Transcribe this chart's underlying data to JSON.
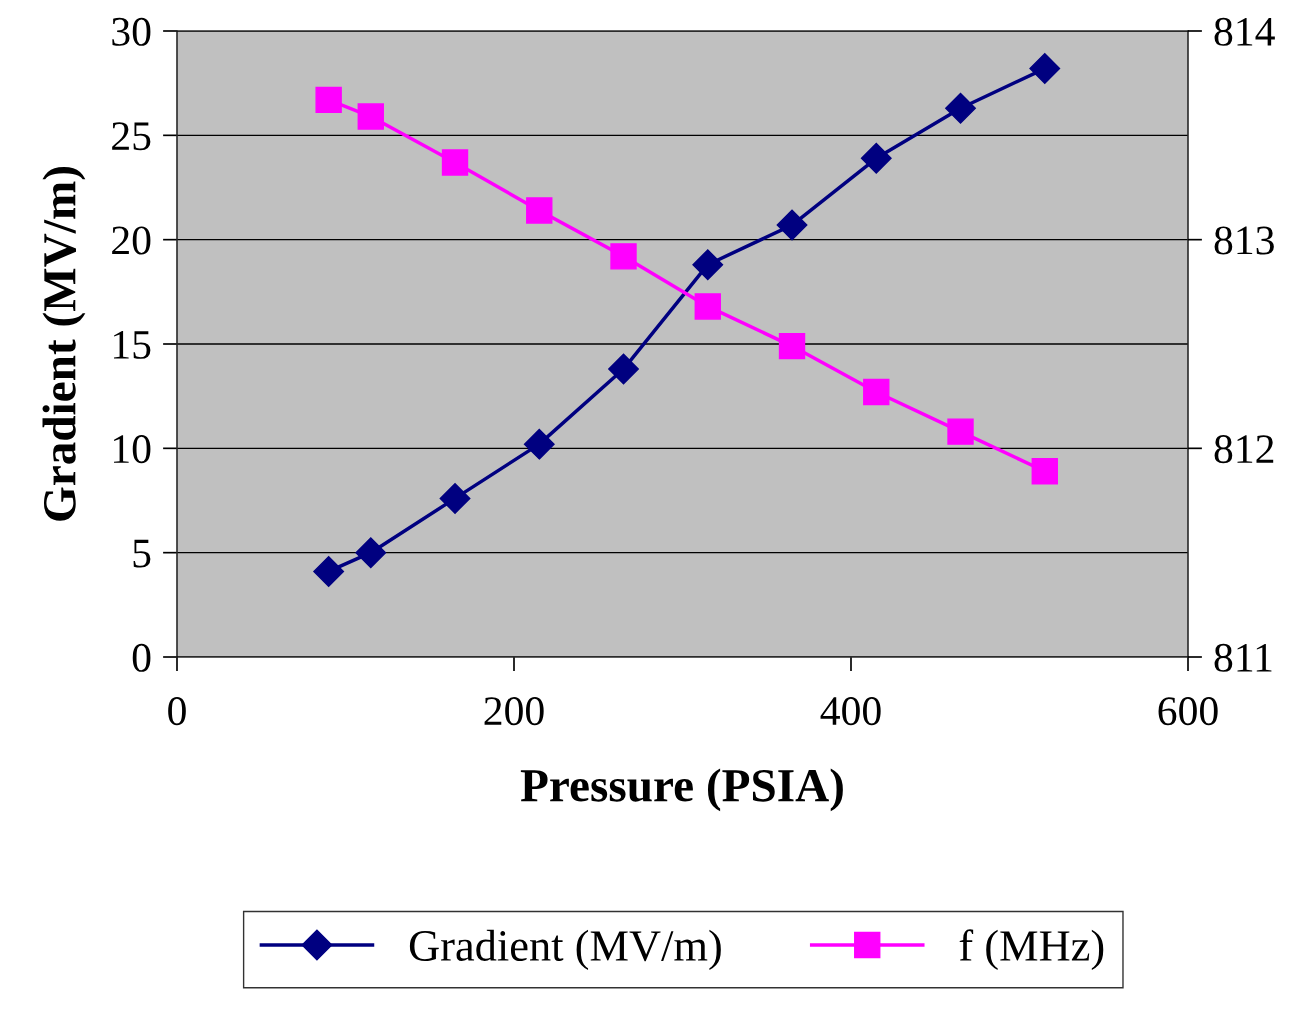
{
  "chart_data": {
    "type": "line",
    "xlabel": "Pressure (PSIA)",
    "ylabel": "Gradient (MV/m)",
    "x": [
      90,
      115,
      165,
      215,
      265,
      315,
      365,
      415,
      465,
      515
    ],
    "series": [
      {
        "name": "Gradient (MV/m)",
        "color": "#000080",
        "marker": "diamond",
        "values": [
          4.1,
          5.0,
          7.6,
          10.2,
          13.8,
          18.8,
          20.7,
          23.9,
          26.3,
          28.2
        ]
      },
      {
        "name": "f (MHz)",
        "color": "#ff00ff",
        "marker": "square",
        "axis": "y2",
        "values": [
          813.67,
          813.59,
          813.37,
          813.14,
          812.92,
          812.68,
          812.49,
          812.27,
          812.08,
          811.89
        ]
      }
    ],
    "xlim": [
      0,
      600
    ],
    "xticks": [
      0,
      200,
      400,
      600
    ],
    "ylim": [
      0,
      30
    ],
    "yticks": [
      0,
      5,
      10,
      15,
      20,
      25,
      30
    ],
    "y2lim": [
      811,
      814
    ],
    "y2ticks": [
      811,
      812,
      813,
      814
    ],
    "grid": "y",
    "legend": "bottom",
    "line_style": "solid"
  }
}
